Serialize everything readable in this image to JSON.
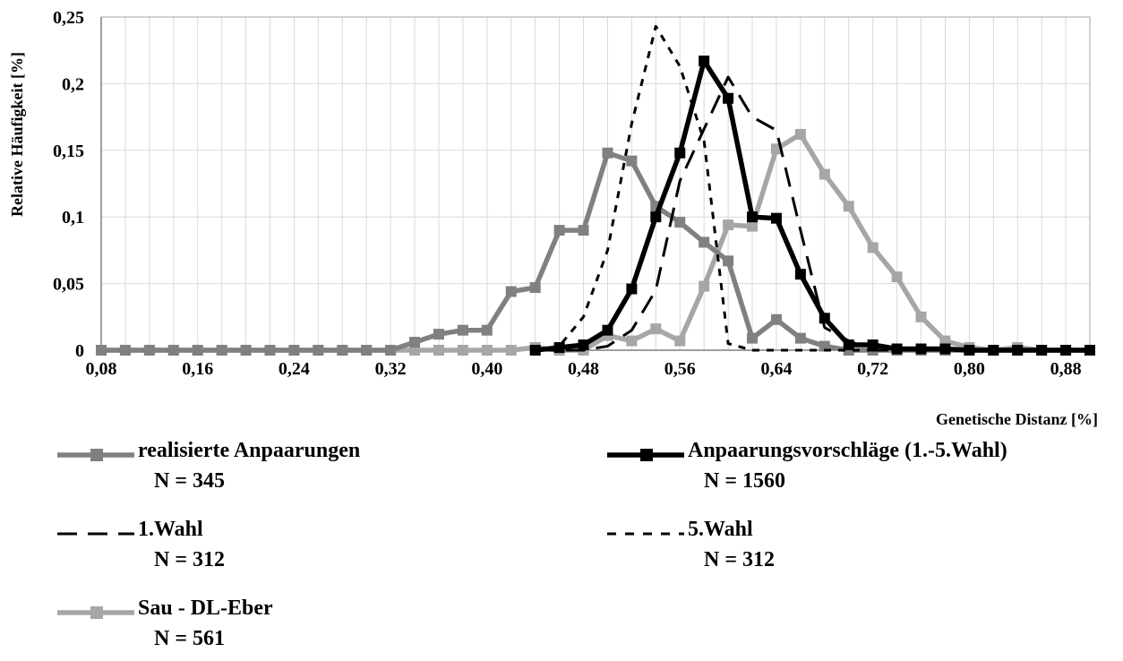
{
  "chart_data": {
    "type": "line",
    "xlabel": "Genetische Distanz [%]",
    "ylabel": "Relative Häufigkeit [%]",
    "xlim": [
      0.08,
      0.9
    ],
    "ylim": [
      0,
      0.25
    ],
    "x_ticks": [
      "0,08",
      "0,16",
      "0,24",
      "0,32",
      "0,40",
      "0,48",
      "0,56",
      "0,64",
      "0,72",
      "0,80",
      "0,88"
    ],
    "y_ticks": [
      "0",
      "0,05",
      "0,1",
      "0,15",
      "0,2",
      "0,25"
    ],
    "grid": true,
    "legend_position": "bottom",
    "x": [
      0.08,
      0.1,
      0.12,
      0.14,
      0.16,
      0.18,
      0.2,
      0.22,
      0.24,
      0.26,
      0.28,
      0.3,
      0.32,
      0.34,
      0.36,
      0.38,
      0.4,
      0.42,
      0.44,
      0.46,
      0.48,
      0.5,
      0.52,
      0.54,
      0.56,
      0.58,
      0.6,
      0.62,
      0.64,
      0.66,
      0.68,
      0.7,
      0.72,
      0.74,
      0.76,
      0.78,
      0.8,
      0.82,
      0.84,
      0.86,
      0.88,
      0.9
    ],
    "series": [
      {
        "name": "realisierte Anpaarungen",
        "n_label": "N = 345",
        "color": "#808080",
        "style": "solid-marker",
        "values": [
          0,
          0,
          0,
          0,
          0,
          0,
          0,
          0,
          0,
          0,
          0,
          0,
          0,
          0.006,
          0.012,
          0.015,
          0.015,
          0.044,
          0.047,
          0.09,
          0.09,
          0.148,
          0.142,
          0.108,
          0.096,
          0.081,
          0.067,
          0.009,
          0.023,
          0.009,
          0.003,
          0,
          0,
          0,
          0,
          0,
          0,
          0,
          0,
          0,
          0,
          0
        ]
      },
      {
        "name": "Anpaarungsvorschläge (1.-5.Wahl)",
        "n_label": "N = 1560",
        "color": "#000000",
        "style": "solid-marker",
        "values": [
          null,
          null,
          null,
          null,
          null,
          null,
          null,
          null,
          null,
          null,
          null,
          null,
          null,
          null,
          null,
          null,
          null,
          null,
          0,
          0.002,
          0.004,
          0.015,
          0.046,
          0.1,
          0.148,
          0.217,
          0.189,
          0.1,
          0.099,
          0.057,
          0.024,
          0.004,
          0.004,
          0.001,
          0.001,
          0.001,
          0,
          0,
          0,
          0,
          0,
          0
        ]
      },
      {
        "name": "1.Wahl",
        "n_label": "N = 312",
        "color": "#000000",
        "style": "long-dash",
        "values": [
          null,
          null,
          null,
          null,
          null,
          null,
          null,
          null,
          null,
          null,
          null,
          null,
          null,
          null,
          null,
          null,
          null,
          null,
          0,
          0,
          0,
          0.003,
          0.015,
          0.045,
          0.127,
          0.166,
          0.205,
          0.175,
          0.165,
          0.09,
          0.017,
          0.007,
          0,
          0,
          0,
          0,
          0,
          0,
          0,
          0,
          0,
          0
        ]
      },
      {
        "name": "5.Wahl",
        "n_label": "N = 312",
        "color": "#000000",
        "style": "short-dash",
        "values": [
          null,
          null,
          null,
          null,
          null,
          null,
          null,
          null,
          null,
          null,
          null,
          null,
          null,
          null,
          null,
          null,
          null,
          null,
          0,
          0.003,
          0.025,
          0.075,
          0.17,
          0.243,
          0.213,
          0.157,
          0.005,
          0,
          0,
          0,
          0,
          0,
          0,
          0,
          0,
          0,
          0,
          0,
          0,
          0,
          0,
          0
        ]
      },
      {
        "name": "Sau - DL-Eber",
        "n_label": "N = 561",
        "color": "#a6a6a6",
        "style": "solid-marker",
        "values": [
          0,
          0,
          0,
          0,
          0,
          0,
          0,
          0,
          0,
          0,
          0,
          0,
          0,
          0,
          0,
          0,
          0,
          0,
          0.002,
          0,
          0,
          0.011,
          0.007,
          0.016,
          0.007,
          0.048,
          0.094,
          0.093,
          0.151,
          0.162,
          0.132,
          0.108,
          0.077,
          0.055,
          0.025,
          0.007,
          0.002,
          0,
          0.002,
          0,
          0,
          0
        ]
      }
    ]
  }
}
